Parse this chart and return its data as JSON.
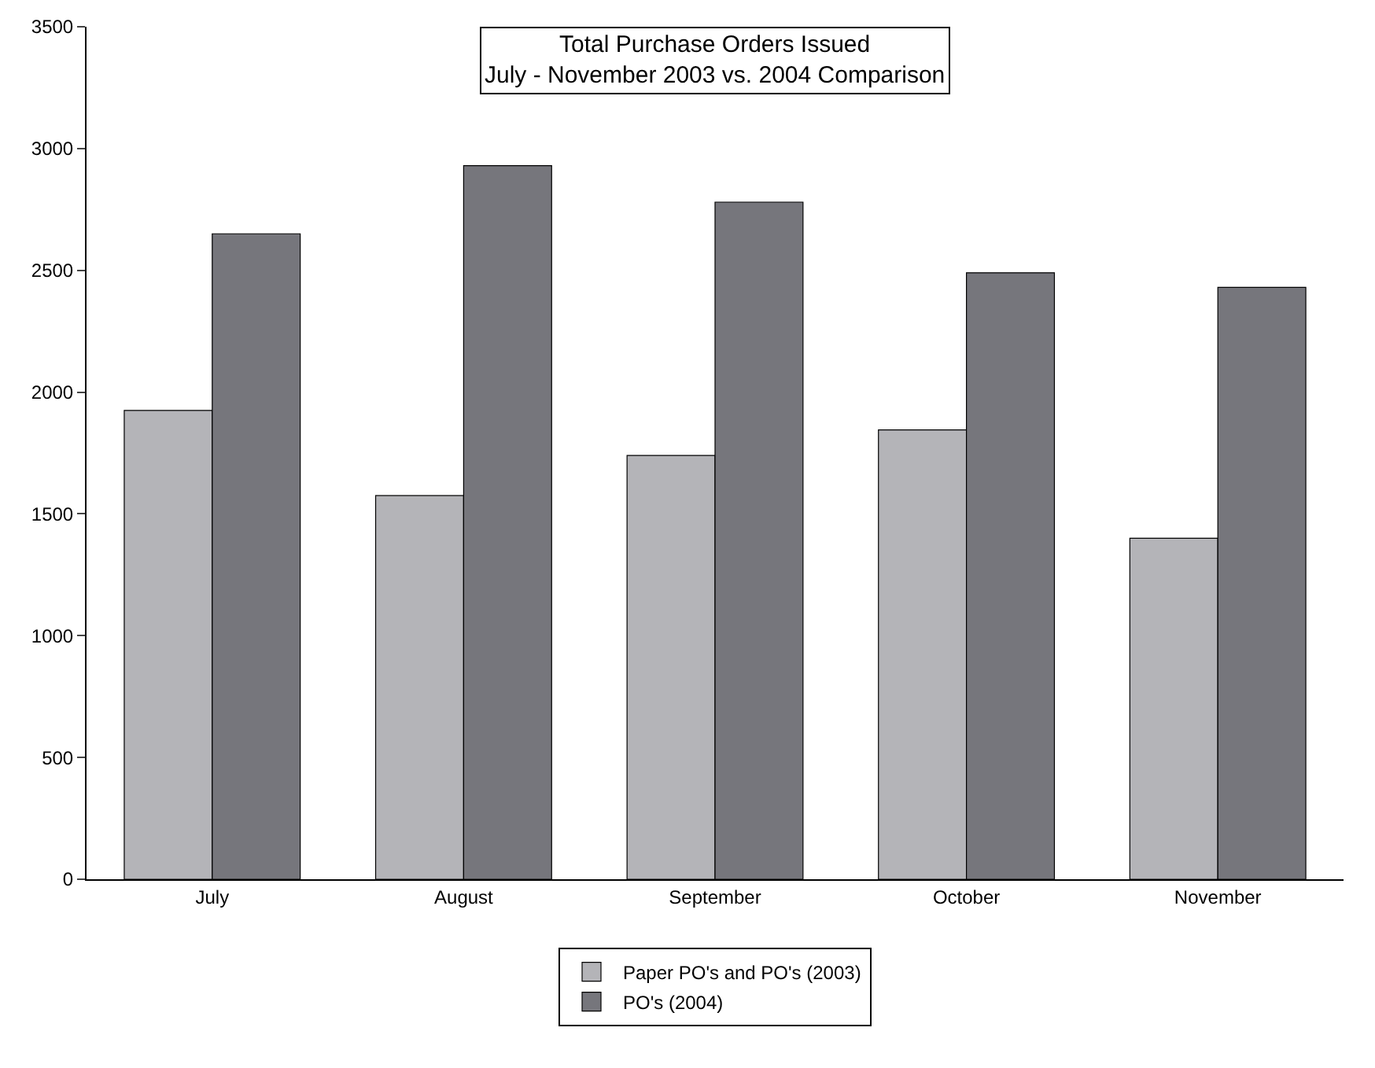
{
  "chart_data": {
    "type": "bar",
    "title": "Total Purchase Orders Issued\nJuly - November 2003 vs. 2004 Comparison",
    "categories": [
      "July",
      "August",
      "September",
      "October",
      "November"
    ],
    "series": [
      {
        "name": "Paper PO's and PO's (2003)",
        "color": "#b4b4b8",
        "values": [
          1925,
          1575,
          1740,
          1845,
          1400
        ]
      },
      {
        "name": "PO's (2004)",
        "color": "#76767c",
        "values": [
          2650,
          2930,
          2780,
          2490,
          2430
        ]
      }
    ],
    "ylim": [
      0,
      3500
    ],
    "yticks": [
      0,
      500,
      1000,
      1500,
      2000,
      2500,
      3000,
      3500
    ],
    "grid": false,
    "legend": "bottom"
  }
}
